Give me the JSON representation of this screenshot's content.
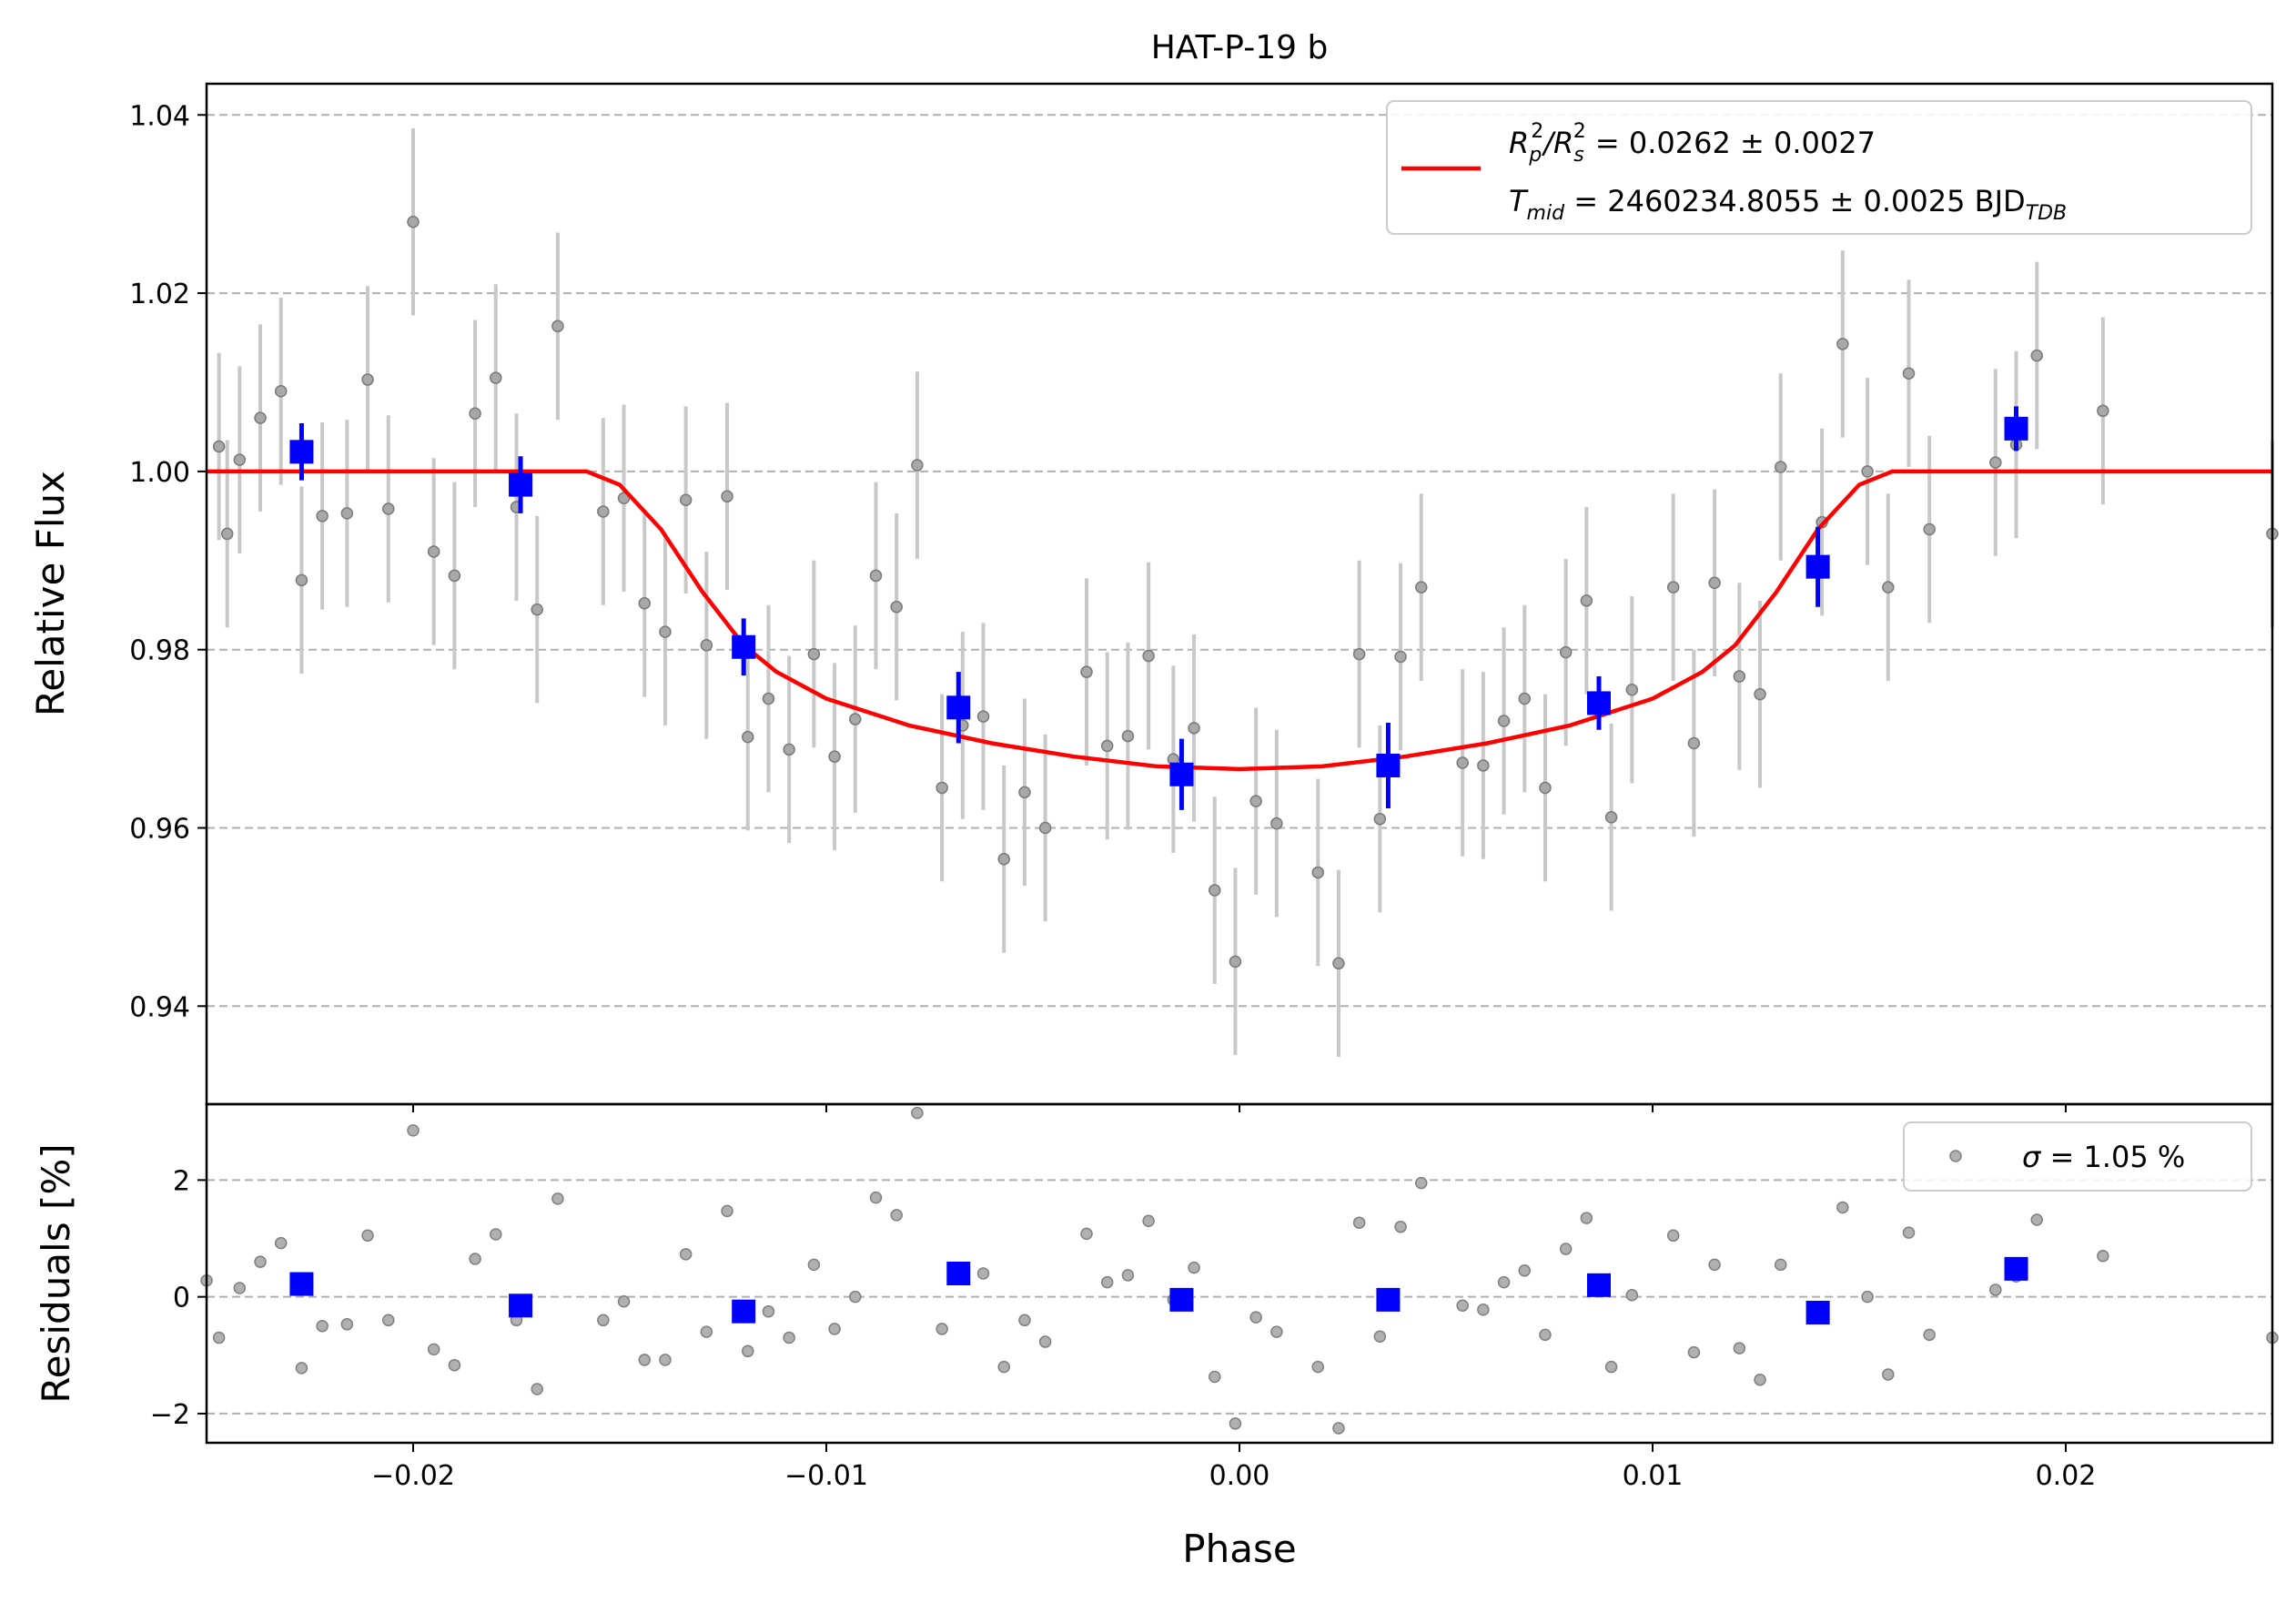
{
  "chart_data": [
    {
      "type": "scatter",
      "title": "HAT-P-19 b",
      "xlabel": "",
      "ylabel": "Relative Flux",
      "xlim": [
        -0.025,
        0.025
      ],
      "ylim": [
        0.929,
        1.0435
      ],
      "y_ticks": [
        0.94,
        0.96,
        0.98,
        1.0,
        1.02,
        1.04
      ],
      "y_tick_labels": [
        "0.94",
        "0.96",
        "0.98",
        "1.00",
        "1.02",
        "1.04"
      ],
      "grid": "horizontal dashed",
      "legend_position": "top-right",
      "colors": {
        "data": "#808080",
        "error_bars": "#c8c8c8",
        "binned": "#0000ff",
        "model": "#ff0000"
      },
      "model": {
        "name": "R_p²/R_s² = 0.0262 ± 0.0027  T_mid = 2460234.8055 ± 0.0025 BJD_TDB",
        "legend_line1": {
          "main": "R",
          "sub1": "p",
          "sup1": "2",
          "slash": "/R",
          "sub2": "s",
          "sup2": "2",
          "rest": " = 0.0262 ± 0.0027"
        },
        "legend_line2": {
          "main": "T",
          "sub1": "mid",
          "rest": " = 2460234.8055 ± 0.0025 BJD",
          "sub2": "TDB"
        },
        "x": [
          -0.025,
          -0.0158,
          -0.015,
          -0.014,
          -0.013,
          -0.012,
          -0.0112,
          -0.01,
          -0.008,
          -0.006,
          -0.004,
          -0.002,
          0.0,
          0.002,
          0.004,
          0.006,
          0.008,
          0.01,
          0.0112,
          0.012,
          0.013,
          0.014,
          0.015,
          0.0158,
          0.025
        ],
        "y": [
          1.0,
          1.0,
          0.9985,
          0.9935,
          0.9865,
          0.9805,
          0.9775,
          0.9745,
          0.9715,
          0.9695,
          0.968,
          0.9669,
          0.9666,
          0.9669,
          0.968,
          0.9695,
          0.9715,
          0.9745,
          0.9775,
          0.9805,
          0.9865,
          0.9935,
          0.9985,
          1.0,
          1.0
        ]
      },
      "points": {
        "x": [
          -0.0247,
          -0.0245,
          -0.0242,
          -0.0237,
          -0.0232,
          -0.0227,
          -0.0222,
          -0.0216,
          -0.0211,
          -0.0206,
          -0.02,
          -0.0195,
          -0.019,
          -0.0185,
          -0.018,
          -0.0175,
          -0.017,
          -0.0165,
          -0.0154,
          -0.0149,
          -0.0144,
          -0.0139,
          -0.0134,
          -0.0129,
          -0.0124,
          -0.0119,
          -0.0114,
          -0.0109,
          -0.0103,
          -0.0098,
          -0.0093,
          -0.0088,
          -0.0083,
          -0.0078,
          -0.0072,
          -0.0067,
          -0.0062,
          -0.0057,
          -0.0052,
          -0.0047,
          -0.0037,
          -0.0032,
          -0.0027,
          -0.0022,
          -0.0016,
          -0.0011,
          -0.0006,
          -0.0001,
          0.0004,
          0.0009,
          0.0019,
          0.0024,
          0.0029,
          0.0034,
          0.0039,
          0.0044,
          0.0054,
          0.0059,
          0.0064,
          0.0069,
          0.0074,
          0.0079,
          0.0084,
          0.009,
          0.0095,
          0.0105,
          0.011,
          0.0115,
          0.0121,
          0.0126,
          0.0131,
          0.0141,
          0.0146,
          0.0152,
          0.0157,
          0.0162,
          0.0167,
          0.0183,
          0.0188,
          0.0193,
          0.0209,
          0.025
        ],
        "y": [
          1.0028,
          0.993,
          1.0013,
          1.006,
          1.009,
          0.9878,
          0.995,
          0.9953,
          1.0103,
          0.9958,
          1.028,
          0.991,
          0.9883,
          1.0065,
          1.0105,
          0.996,
          0.9845,
          1.0163,
          0.9955,
          0.997,
          0.9852,
          0.982,
          0.9968,
          0.9805,
          0.9972,
          0.9702,
          0.9745,
          0.9688,
          0.9795,
          0.968,
          0.9722,
          0.9883,
          0.9848,
          1.0007,
          0.9645,
          0.9715,
          0.9725,
          0.9565,
          0.964,
          0.96,
          0.9775,
          0.9692,
          0.9703,
          0.9793,
          0.9677,
          0.9712,
          0.953,
          0.945,
          0.963,
          0.9605,
          0.955,
          0.9448,
          0.9795,
          0.961,
          0.9792,
          0.987,
          0.9673,
          0.967,
          0.972,
          0.9745,
          0.9645,
          0.9797,
          0.9855,
          0.9612,
          0.9755,
          0.987,
          0.9695,
          0.9875,
          0.977,
          0.975,
          1.0005,
          0.9943,
          1.0143,
          1.0,
          0.987,
          1.011,
          0.9935,
          1.001,
          1.003,
          1.013,
          1.0068,
          0.993
        ],
        "yerr": 0.0105
      },
      "binned": {
        "x": [
          -0.0227,
          -0.0174,
          -0.012,
          -0.0068,
          -0.0014,
          0.0036,
          0.0087,
          0.014,
          0.0188
        ],
        "y": [
          1.0022,
          0.9985,
          0.9803,
          0.9735,
          0.966,
          0.967,
          0.974,
          0.9893,
          1.0048
        ],
        "yerr": [
          0.0032,
          0.0032,
          0.0032,
          0.004,
          0.004,
          0.0048,
          0.003,
          0.0045,
          0.0025
        ]
      }
    },
    {
      "type": "scatter",
      "title": "",
      "xlabel": "Phase",
      "ylabel": "Residuals [%]",
      "xlim": [
        -0.025,
        0.025
      ],
      "ylim": [
        -2.5,
        3.3
      ],
      "x_ticks": [
        -0.02,
        -0.01,
        0.0,
        0.01,
        0.02
      ],
      "x_tick_labels": [
        "−0.02",
        "−0.01",
        "0.00",
        "0.01",
        "0.02"
      ],
      "y_ticks": [
        -2,
        0,
        2
      ],
      "y_tick_labels": [
        "−2",
        "0",
        "2"
      ],
      "grid": "horizontal dashed",
      "legend_position": "top-right",
      "legend": {
        "symbol": "σ",
        "text": " = 1.05 %"
      },
      "points": {
        "x": [
          -0.025,
          -0.0247,
          -0.0242,
          -0.0237,
          -0.0232,
          -0.0227,
          -0.0222,
          -0.0216,
          -0.0211,
          -0.0206,
          -0.02,
          -0.0195,
          -0.019,
          -0.0185,
          -0.018,
          -0.0175,
          -0.017,
          -0.0165,
          -0.0154,
          -0.0149,
          -0.0144,
          -0.0139,
          -0.0134,
          -0.0129,
          -0.0124,
          -0.0119,
          -0.0114,
          -0.0109,
          -0.0103,
          -0.0098,
          -0.0093,
          -0.0088,
          -0.0083,
          -0.0078,
          -0.0072,
          -0.0067,
          -0.0062,
          -0.0057,
          -0.0052,
          -0.0047,
          -0.0037,
          -0.0032,
          -0.0027,
          -0.0022,
          -0.0016,
          -0.0011,
          -0.0006,
          -0.0001,
          0.0004,
          0.0009,
          0.0019,
          0.0024,
          0.0029,
          0.0034,
          0.0039,
          0.0044,
          0.0054,
          0.0059,
          0.0064,
          0.0069,
          0.0074,
          0.0079,
          0.0084,
          0.009,
          0.0095,
          0.0105,
          0.011,
          0.0115,
          0.0121,
          0.0126,
          0.0131,
          0.0141,
          0.0146,
          0.0152,
          0.0157,
          0.0162,
          0.0167,
          0.0183,
          0.0188,
          0.0193,
          0.0209,
          0.025
        ],
        "y": [
          0.28,
          -0.7,
          0.15,
          0.6,
          0.92,
          -1.22,
          -0.5,
          -0.47,
          1.05,
          -0.4,
          2.85,
          -0.9,
          -1.17,
          0.65,
          1.07,
          -0.4,
          -1.58,
          1.68,
          -0.4,
          -0.08,
          -1.08,
          -1.08,
          0.73,
          -0.6,
          1.47,
          -0.93,
          -0.25,
          -0.7,
          0.55,
          -0.55,
          0.0,
          1.7,
          1.4,
          3.15,
          -0.55,
          0.3,
          0.4,
          -1.2,
          -0.4,
          -0.77,
          1.08,
          0.25,
          0.37,
          1.3,
          -0.05,
          0.5,
          -1.37,
          -2.17,
          -0.35,
          -0.6,
          -1.2,
          -2.25,
          1.27,
          -0.68,
          1.2,
          1.95,
          -0.15,
          -0.22,
          0.25,
          0.45,
          -0.65,
          0.82,
          1.35,
          -1.2,
          0.03,
          1.05,
          -0.95,
          0.55,
          -0.88,
          -1.42,
          0.55,
          -0.3,
          1.53,
          0.0,
          -1.33,
          1.1,
          -0.65,
          0.12,
          0.35,
          1.32,
          0.7,
          -0.7
        ]
      },
      "binned": {
        "x": [
          -0.0227,
          -0.0174,
          -0.012,
          -0.0068,
          -0.0014,
          0.0036,
          0.0087,
          0.014,
          0.0188
        ],
        "y": [
          0.22,
          -0.15,
          -0.25,
          0.4,
          -0.05,
          -0.05,
          0.2,
          -0.27,
          0.48
        ]
      }
    }
  ]
}
